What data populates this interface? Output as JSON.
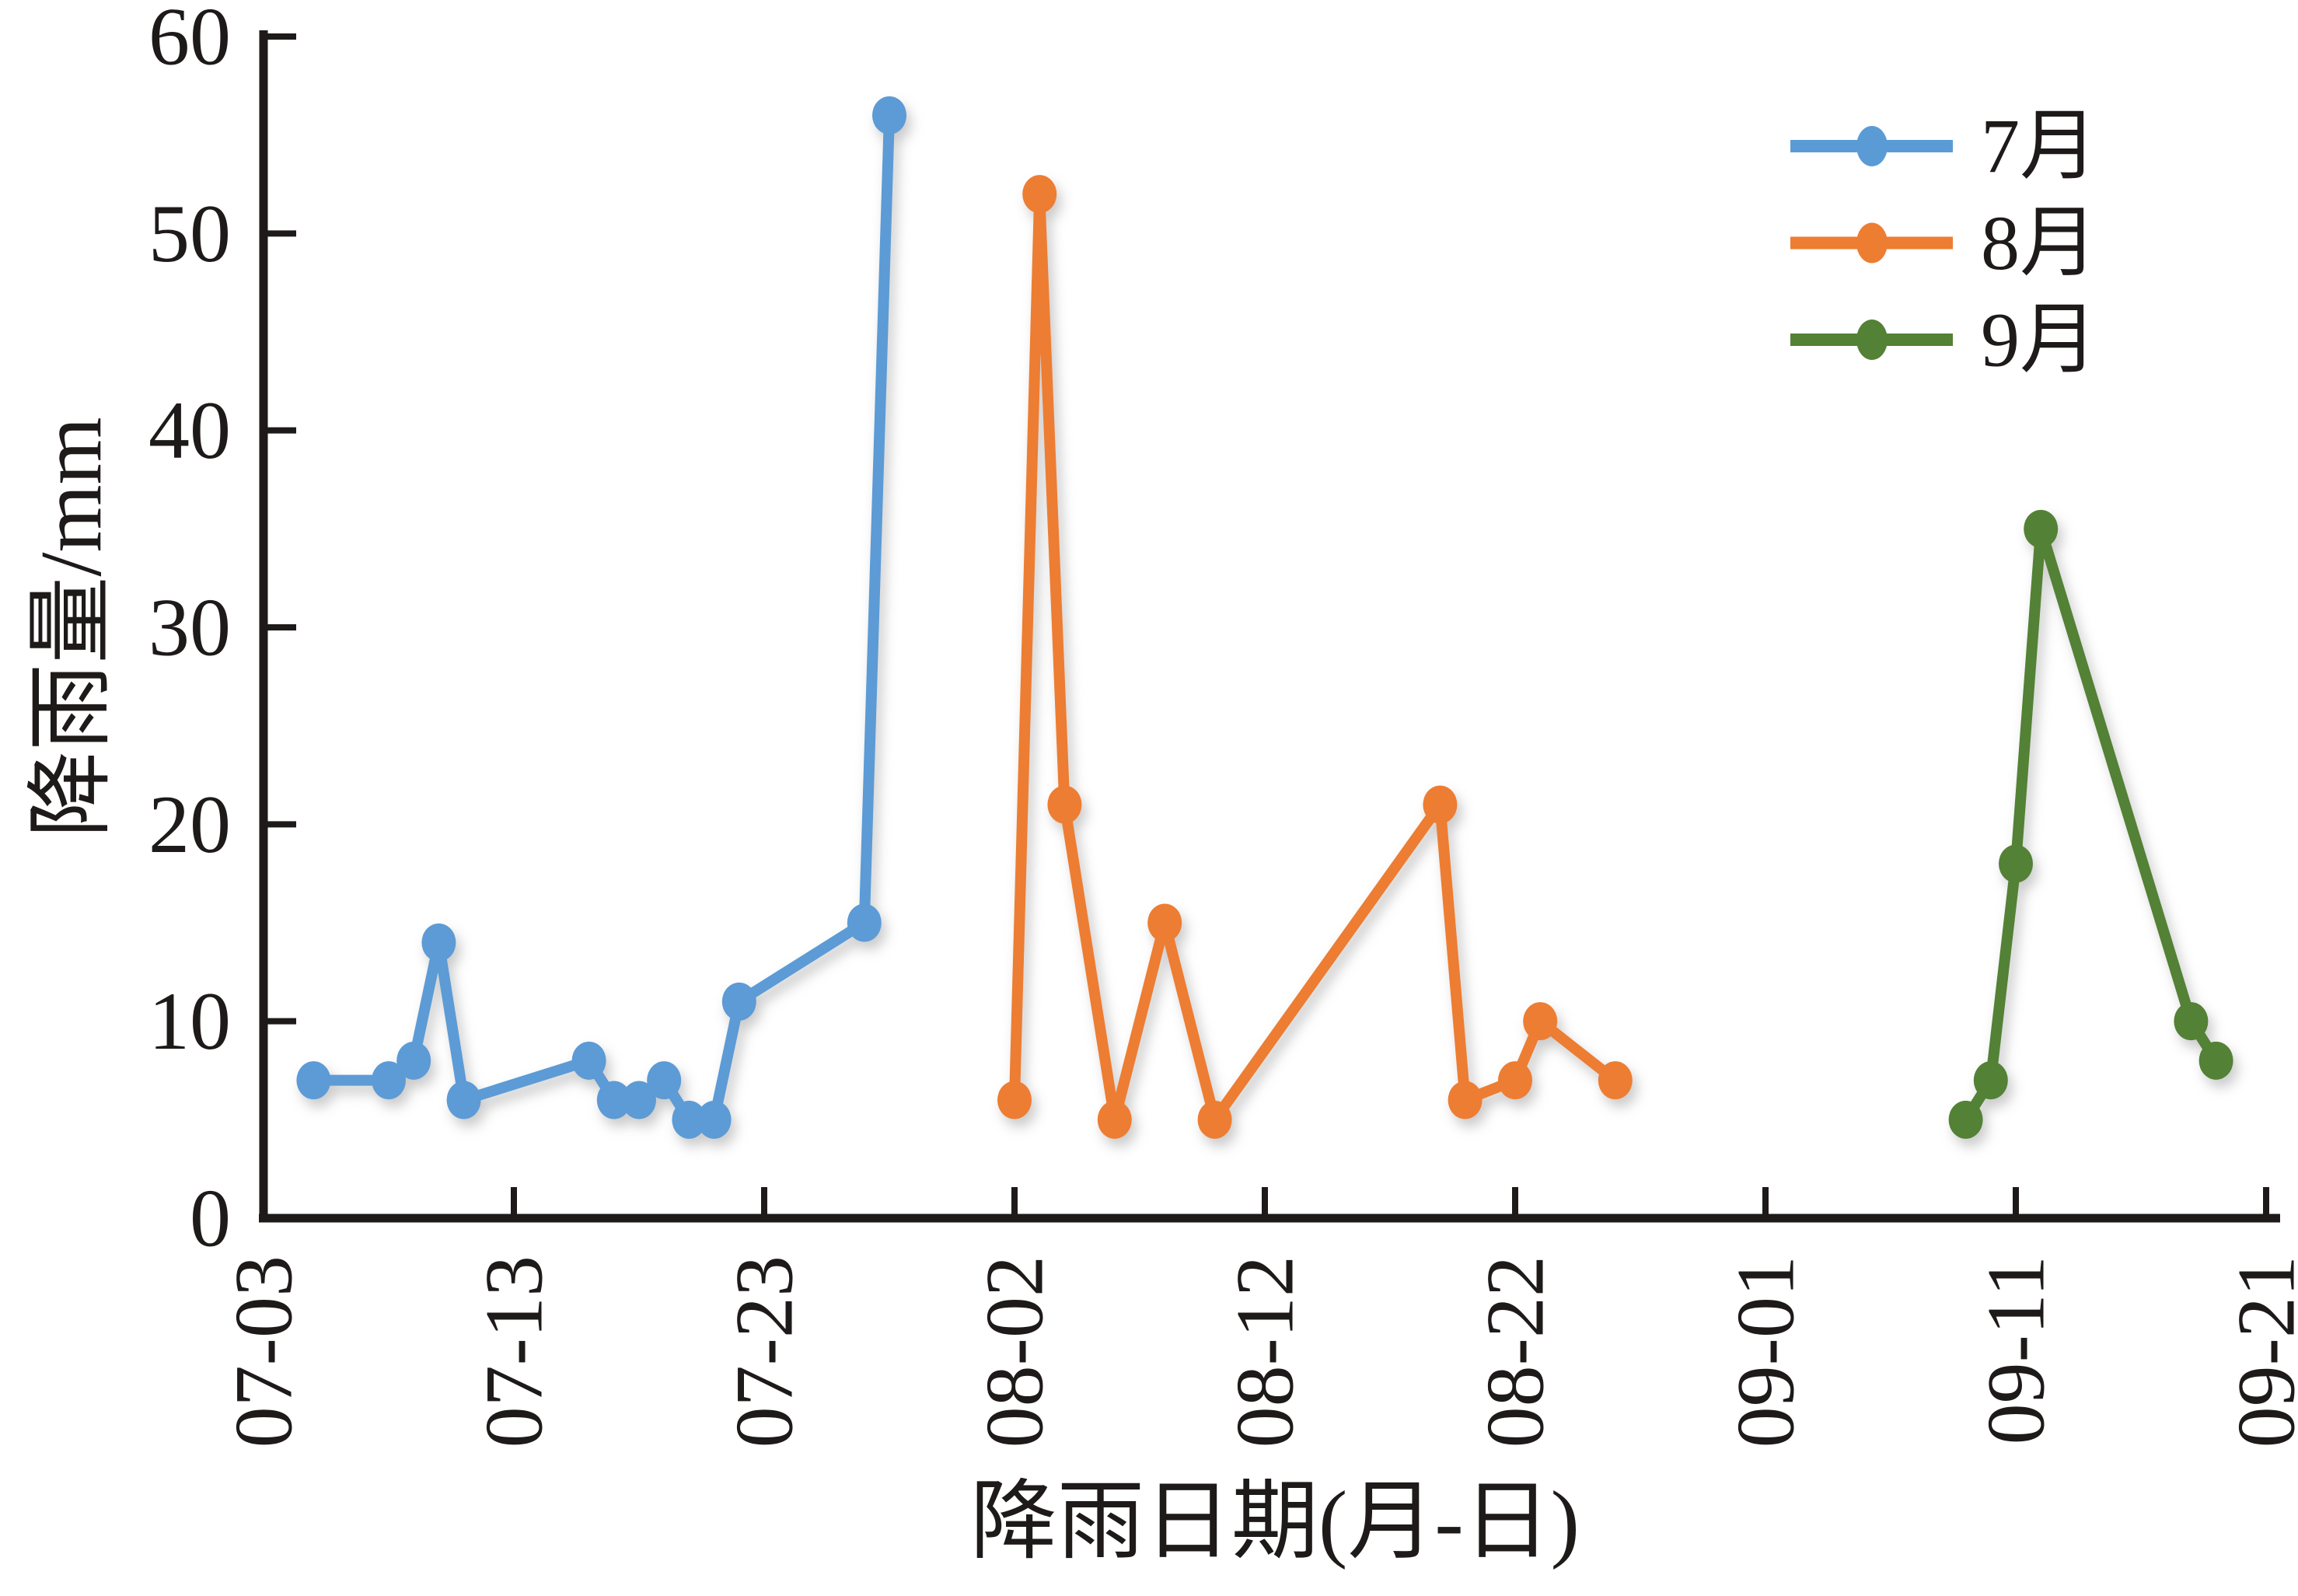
{
  "chart_data": {
    "type": "line",
    "title": "",
    "xlabel": "降雨日期(月-日)",
    "ylabel": "降雨量/mm",
    "ylim": [
      0,
      60
    ],
    "yticks": [
      0,
      10,
      20,
      30,
      40,
      50,
      60
    ],
    "xlim_days": [
      0,
      80
    ],
    "xticks": [
      {
        "label": "07-03",
        "day": 0
      },
      {
        "label": "07-13",
        "day": 10
      },
      {
        "label": "07-23",
        "day": 20
      },
      {
        "label": "08-02",
        "day": 30
      },
      {
        "label": "08-12",
        "day": 40
      },
      {
        "label": "08-22",
        "day": 50
      },
      {
        "label": "09-01",
        "day": 60
      },
      {
        "label": "09-11",
        "day": 70
      },
      {
        "label": "09-21",
        "day": 80
      }
    ],
    "grid": false,
    "legend_position": "top-right",
    "axis_color": "#1d1a19",
    "text_color": "#1d1a19",
    "series": [
      {
        "name": "7月",
        "color": "#5B9BD5",
        "points": [
          {
            "date": "07-05",
            "day": 2,
            "value": 7
          },
          {
            "date": "07-08",
            "day": 5,
            "value": 7
          },
          {
            "date": "07-09",
            "day": 6,
            "value": 8
          },
          {
            "date": "07-10",
            "day": 7,
            "value": 14
          },
          {
            "date": "07-11",
            "day": 8,
            "value": 6
          },
          {
            "date": "07-16",
            "day": 13,
            "value": 8
          },
          {
            "date": "07-17",
            "day": 14,
            "value": 6
          },
          {
            "date": "07-18",
            "day": 15,
            "value": 6
          },
          {
            "date": "07-19",
            "day": 16,
            "value": 7
          },
          {
            "date": "07-20",
            "day": 17,
            "value": 5
          },
          {
            "date": "07-21",
            "day": 18,
            "value": 5
          },
          {
            "date": "07-22",
            "day": 19,
            "value": 11
          },
          {
            "date": "07-27",
            "day": 24,
            "value": 15
          },
          {
            "date": "07-28",
            "day": 25,
            "value": 56
          }
        ]
      },
      {
        "name": "8月",
        "color": "#ED7D31",
        "points": [
          {
            "date": "08-02",
            "day": 30,
            "value": 6
          },
          {
            "date": "08-03",
            "day": 31,
            "value": 52
          },
          {
            "date": "08-04",
            "day": 32,
            "value": 21
          },
          {
            "date": "08-06",
            "day": 34,
            "value": 5
          },
          {
            "date": "08-08",
            "day": 36,
            "value": 15
          },
          {
            "date": "08-10",
            "day": 38,
            "value": 5
          },
          {
            "date": "08-19",
            "day": 47,
            "value": 21
          },
          {
            "date": "08-20",
            "day": 48,
            "value": 6
          },
          {
            "date": "08-22",
            "day": 50,
            "value": 7
          },
          {
            "date": "08-23",
            "day": 51,
            "value": 10
          },
          {
            "date": "08-26",
            "day": 54,
            "value": 7
          }
        ]
      },
      {
        "name": "9月",
        "color": "#538135",
        "points": [
          {
            "date": "09-09",
            "day": 68,
            "value": 5
          },
          {
            "date": "09-10",
            "day": 69,
            "value": 7
          },
          {
            "date": "09-11",
            "day": 70,
            "value": 18
          },
          {
            "date": "09-12",
            "day": 71,
            "value": 35
          },
          {
            "date": "09-18",
            "day": 77,
            "value": 10
          },
          {
            "date": "09-19",
            "day": 78,
            "value": 8
          }
        ]
      }
    ]
  },
  "legend": {
    "items": [
      {
        "label": "7月"
      },
      {
        "label": "8月"
      },
      {
        "label": "9月"
      }
    ]
  }
}
